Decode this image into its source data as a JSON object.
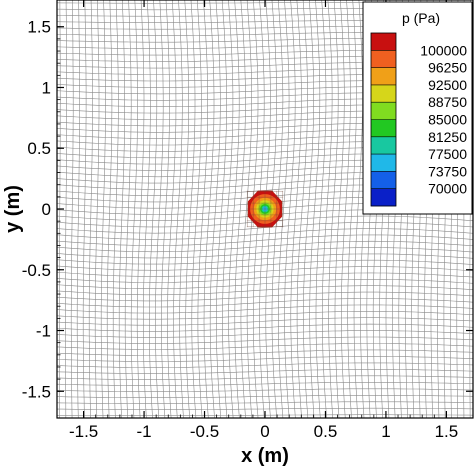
{
  "chart_data": {
    "type": "contour",
    "xlabel": "x (m)",
    "ylabel": "y (m)",
    "xlim": [
      -1.72,
      1.72
    ],
    "ylim": [
      -1.72,
      1.72
    ],
    "xticks": [
      -1.5,
      -1,
      -0.5,
      0,
      0.5,
      1,
      1.5
    ],
    "xtick_labels": [
      "-1.5",
      "-1",
      "-0.5",
      "0",
      "0.5",
      "1",
      "1.5"
    ],
    "yticks": [
      -1.5,
      -1,
      -0.5,
      0,
      0.5,
      1,
      1.5
    ],
    "ytick_labels": [
      "-1.5",
      "-1",
      "-0.5",
      "0",
      "0.5",
      "1",
      "1.5"
    ],
    "grid": "curvilinear mesh lines",
    "legend": {
      "title": "p (Pa)",
      "placement": "top-right",
      "levels": [
        100000,
        96250,
        92500,
        88750,
        85000,
        81250,
        77500,
        73750,
        70000
      ],
      "labels": [
        "100000",
        "96250",
        "92500",
        "88750",
        "85000",
        "81250",
        "77500",
        "73750",
        "70000"
      ],
      "colors": [
        "#c81010",
        "#f06020",
        "#f0a018",
        "#d6d61a",
        "#80dc20",
        "#22c822",
        "#18c8a0",
        "#20b8e8",
        "#1460e8",
        "#0a20c8"
      ]
    },
    "feature": {
      "description_center": [
        0,
        0
      ],
      "radius": 0.15,
      "max_value": 100000,
      "min_value": 70000
    }
  },
  "colors": {
    "mesh": "#8a8a8a",
    "frame": "#000000"
  }
}
